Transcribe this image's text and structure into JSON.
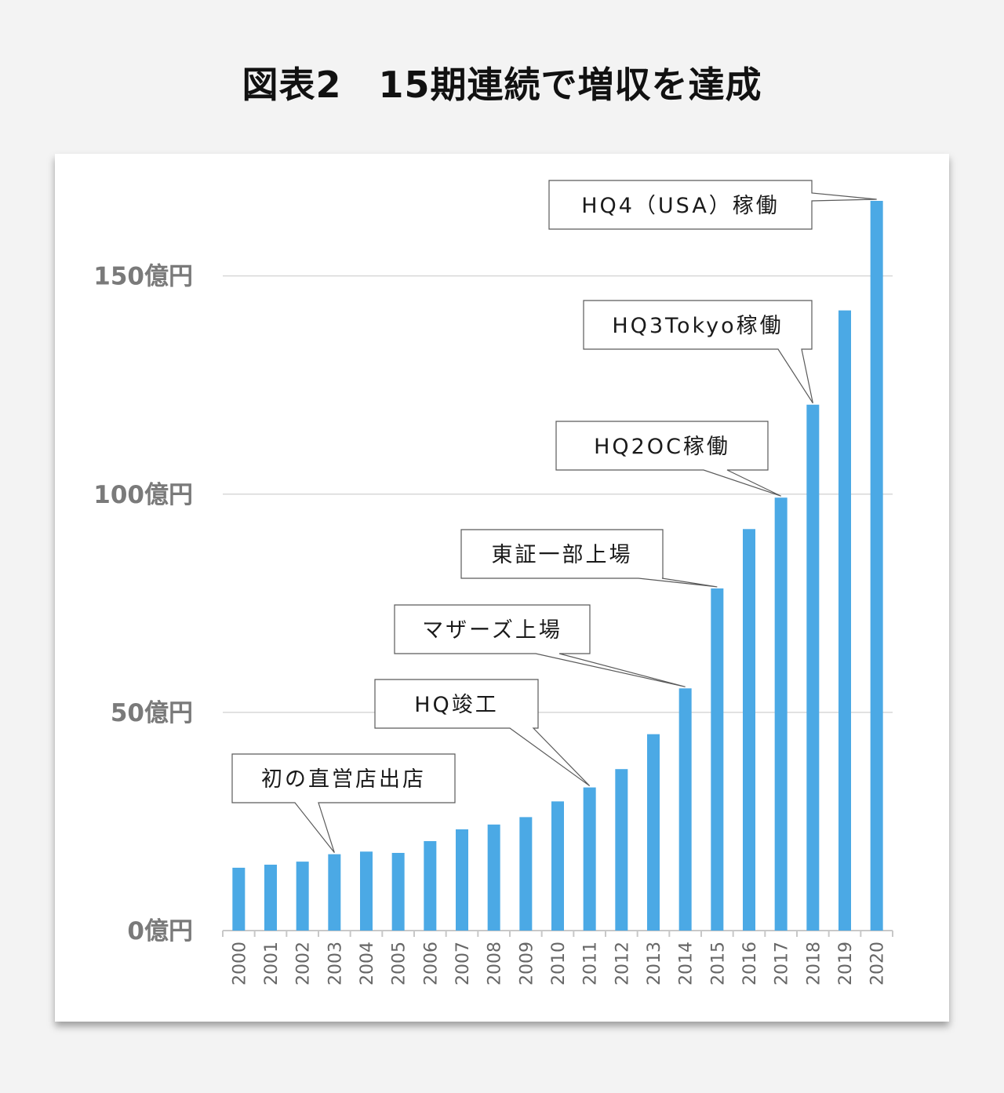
{
  "title": "図表2　15期連続で増収を達成",
  "chart_data": {
    "type": "bar",
    "categories": [
      "2000",
      "2001",
      "2002",
      "2003",
      "2004",
      "2005",
      "2006",
      "2007",
      "2008",
      "2009",
      "2010",
      "2011",
      "2012",
      "2013",
      "2014",
      "2015",
      "2016",
      "2017",
      "2018",
      "2019",
      "2020"
    ],
    "values": [
      14.4,
      15.1,
      15.8,
      17.5,
      18.1,
      17.8,
      20.5,
      23.2,
      24.3,
      26.0,
      29.6,
      32.8,
      37.0,
      45.0,
      55.5,
      78.4,
      92.0,
      99.2,
      120.5,
      142.1,
      167.2
    ],
    "ylim": [
      0,
      167.2
    ],
    "yticks": [
      {
        "value": 0,
        "label": "0億円"
      },
      {
        "value": 50,
        "label": "50億円"
      },
      {
        "value": 100,
        "label": "100億円"
      },
      {
        "value": 150,
        "label": "150億円"
      }
    ],
    "bar_color": "#4ba9e5",
    "grid": true,
    "annotations": [
      {
        "text": "初の直営店出店",
        "category": "2003"
      },
      {
        "text": "HQ竣工",
        "category": "2011"
      },
      {
        "text": "マザーズ上場",
        "category": "2014"
      },
      {
        "text": "東証一部上場",
        "category": "2015"
      },
      {
        "text": "HQ2OC稼働",
        "category": "2017"
      },
      {
        "text": "HQ3Tokyo稼働",
        "category": "2018"
      },
      {
        "text": "HQ4（USA）稼働",
        "category": "2020"
      }
    ]
  }
}
